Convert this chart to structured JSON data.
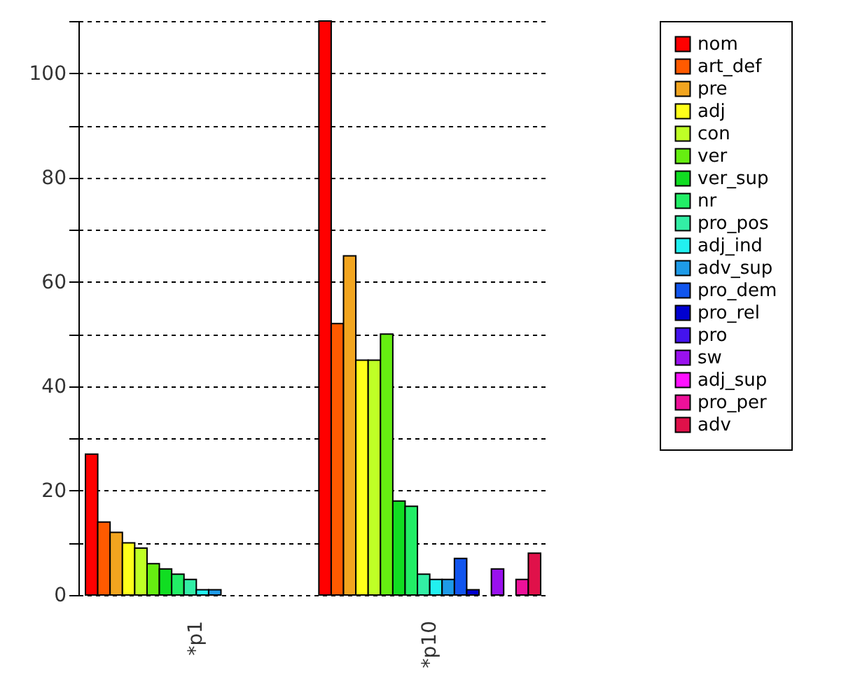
{
  "chart_data": {
    "type": "bar",
    "categories": [
      "*p1",
      "*p10"
    ],
    "series": [
      {
        "name": "nom",
        "color": "#ff0000",
        "values": [
          27,
          110
        ]
      },
      {
        "name": "art_def",
        "color": "#ff5a00",
        "values": [
          14,
          52
        ]
      },
      {
        "name": "pre",
        "color": "#f2a51f",
        "values": [
          12,
          65
        ]
      },
      {
        "name": "adj",
        "color": "#ffff1a",
        "values": [
          10,
          45
        ]
      },
      {
        "name": "con",
        "color": "#bfff26",
        "values": [
          9,
          45
        ]
      },
      {
        "name": "ver",
        "color": "#66ee11",
        "values": [
          6,
          50
        ]
      },
      {
        "name": "ver_sup",
        "color": "#11dd22",
        "values": [
          5,
          18
        ]
      },
      {
        "name": "nr",
        "color": "#22ee66",
        "values": [
          4,
          17
        ]
      },
      {
        "name": "pro_pos",
        "color": "#33eea5",
        "values": [
          3,
          4
        ]
      },
      {
        "name": "adj_ind",
        "color": "#22f0f0",
        "values": [
          1,
          3
        ]
      },
      {
        "name": "adv_sup",
        "color": "#1e9be8",
        "values": [
          1,
          3
        ]
      },
      {
        "name": "pro_dem",
        "color": "#1155ee",
        "values": [
          0,
          7
        ]
      },
      {
        "name": "pro_rel",
        "color": "#0000d0",
        "values": [
          0,
          1
        ]
      },
      {
        "name": "pro",
        "color": "#4413ee",
        "values": [
          0,
          0
        ]
      },
      {
        "name": "sw",
        "color": "#9a11ee",
        "values": [
          0,
          5
        ]
      },
      {
        "name": "adj_sup",
        "color": "#ff11ff",
        "values": [
          0,
          0
        ]
      },
      {
        "name": "pro_per",
        "color": "#ee1199",
        "values": [
          0,
          3
        ]
      },
      {
        "name": "adv",
        "color": "#e0114a",
        "values": [
          0,
          8
        ]
      }
    ],
    "ylim": [
      0,
      110
    ],
    "yticks": [
      0,
      {
        "value": 10,
        "label": null
      },
      20,
      {
        "value": 30,
        "label": null
      },
      40,
      {
        "value": 50,
        "label": null
      },
      60,
      {
        "value": 70,
        "label": null
      },
      80,
      {
        "value": 90,
        "label": null
      },
      100,
      {
        "value": 110,
        "label": null
      }
    ],
    "grid": "y",
    "legend": "right"
  }
}
